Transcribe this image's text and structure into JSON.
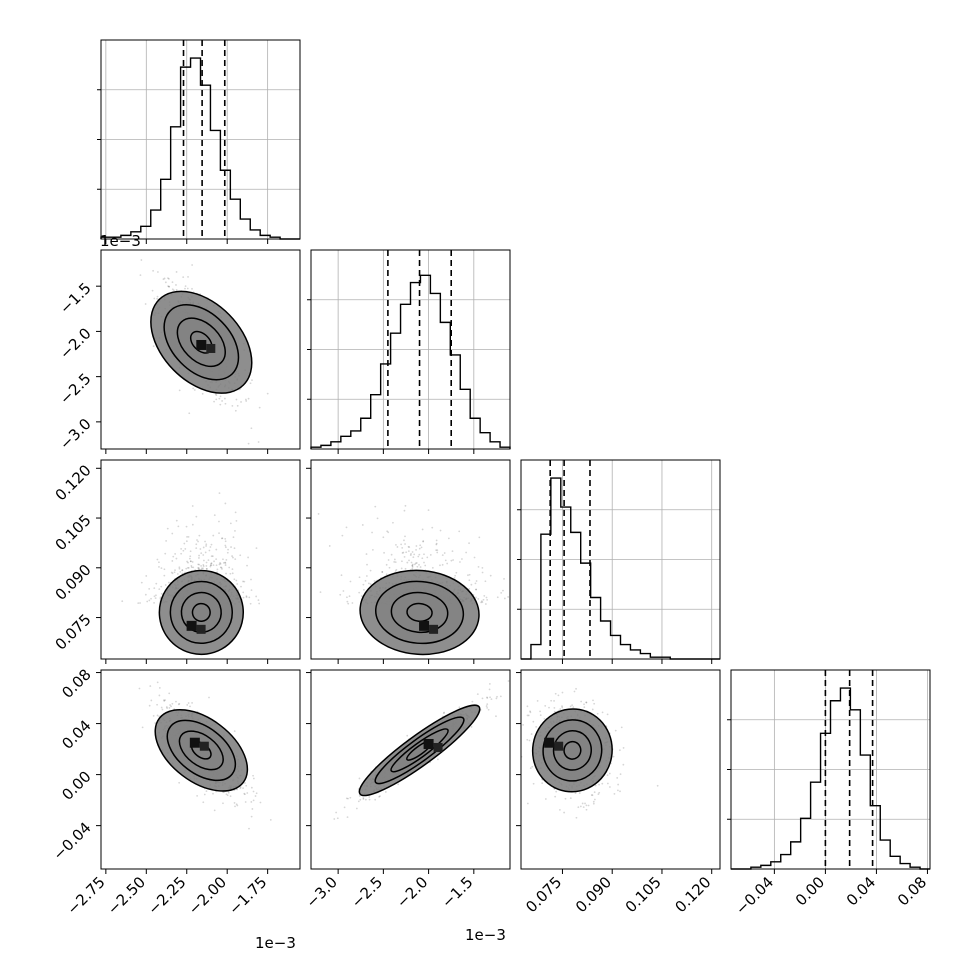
{
  "chart_data": {
    "type": "corner",
    "parameters": [
      {
        "range": [
          -2.78,
          -1.55
        ],
        "ticks": [
          -2.75,
          -2.5,
          -2.25,
          -2.0,
          -1.75
        ],
        "tick_labels": [
          "−2.75",
          "−2.50",
          "−2.25",
          "−2.00",
          "−1.75"
        ],
        "offset_label": "1e−3",
        "quantiles": [
          -2.27,
          -2.155,
          -2.015
        ]
      },
      {
        "range": [
          -3.3,
          -1.1
        ],
        "ticks": [
          -3.0,
          -2.5,
          -2.0,
          -1.5
        ],
        "tick_labels": [
          "−3.0",
          "−2.5",
          "−2.0",
          "−1.5"
        ],
        "offset_label": "1e−3",
        "quantiles": [
          -2.45,
          -2.1,
          -1.75
        ]
      },
      {
        "range": [
          0.0625,
          0.1225
        ],
        "ticks": [
          0.075,
          0.09,
          0.105,
          0.12
        ],
        "tick_labels": [
          "0.075",
          "0.090",
          "0.105",
          "0.120"
        ],
        "offset_label": "",
        "quantiles": [
          0.0713,
          0.0755,
          0.0833
        ]
      },
      {
        "range": [
          -0.074,
          0.082
        ],
        "ticks": [
          -0.04,
          0.0,
          0.04,
          0.08
        ],
        "tick_labels": [
          "−0.04",
          "0.00",
          "0.04",
          "0.08"
        ],
        "offset_label": "",
        "quantiles": [
          0.0,
          0.019,
          0.037
        ]
      }
    ],
    "histograms": [
      {
        "parameter": 0,
        "counts": [
          1,
          1,
          2,
          4,
          7,
          16,
          33,
          62,
          95,
          100,
          85,
          60,
          38,
          22,
          11,
          5,
          2,
          1,
          0,
          0
        ],
        "ymax": 110
      },
      {
        "parameter": 1,
        "counts": [
          1,
          2,
          4,
          7,
          10,
          17,
          30,
          47,
          64,
          80,
          92,
          96,
          86,
          70,
          52,
          33,
          17,
          9,
          4,
          1
        ],
        "ymax": 110
      },
      {
        "parameter": 2,
        "counts": [
          0,
          8,
          69,
          100,
          84,
          70,
          53,
          34,
          21,
          13,
          8,
          5,
          3,
          1,
          1,
          0,
          0,
          0,
          0,
          0
        ],
        "ymax": 110
      },
      {
        "parameter": 3,
        "counts": [
          0,
          0,
          1,
          2,
          4,
          8,
          15,
          28,
          48,
          75,
          93,
          100,
          88,
          63,
          35,
          16,
          7,
          3,
          1,
          0
        ],
        "ymax": 110
      }
    ],
    "pairs": [
      {
        "x": 0,
        "y": 1,
        "mean": [
          -2.16,
          -2.12
        ],
        "sd": [
          0.13,
          0.33
        ],
        "corr": -0.72,
        "mode": [
          -2.16,
          -2.15
        ]
      },
      {
        "x": 0,
        "y": 2,
        "mean": [
          -2.16,
          0.079
        ],
        "sd": [
          0.13,
          0.007
        ],
        "corr": 0.12,
        "mode": [
          -2.22,
          0.0725
        ]
      },
      {
        "x": 1,
        "y": 2,
        "mean": [
          -2.1,
          0.079
        ],
        "sd": [
          0.33,
          0.007
        ],
        "corr": -0.1,
        "mode": [
          -2.05,
          0.0725
        ]
      },
      {
        "x": 0,
        "y": 3,
        "mean": [
          -2.16,
          0.019
        ],
        "sd": [
          0.13,
          0.018
        ],
        "corr": -0.7,
        "mode": [
          -2.2,
          0.025
        ]
      },
      {
        "x": 1,
        "y": 3,
        "mean": [
          -2.1,
          0.019
        ],
        "sd": [
          0.33,
          0.018
        ],
        "corr": 0.95,
        "mode": [
          -2.0,
          0.024
        ]
      },
      {
        "x": 2,
        "y": 3,
        "mean": [
          0.078,
          0.019
        ],
        "sd": [
          0.006,
          0.018
        ],
        "corr": -0.15,
        "mode": [
          0.071,
          0.025
        ]
      }
    ],
    "grid": true,
    "contour_levels": [
      0.5,
      1.0,
      1.5,
      2.0
    ]
  }
}
